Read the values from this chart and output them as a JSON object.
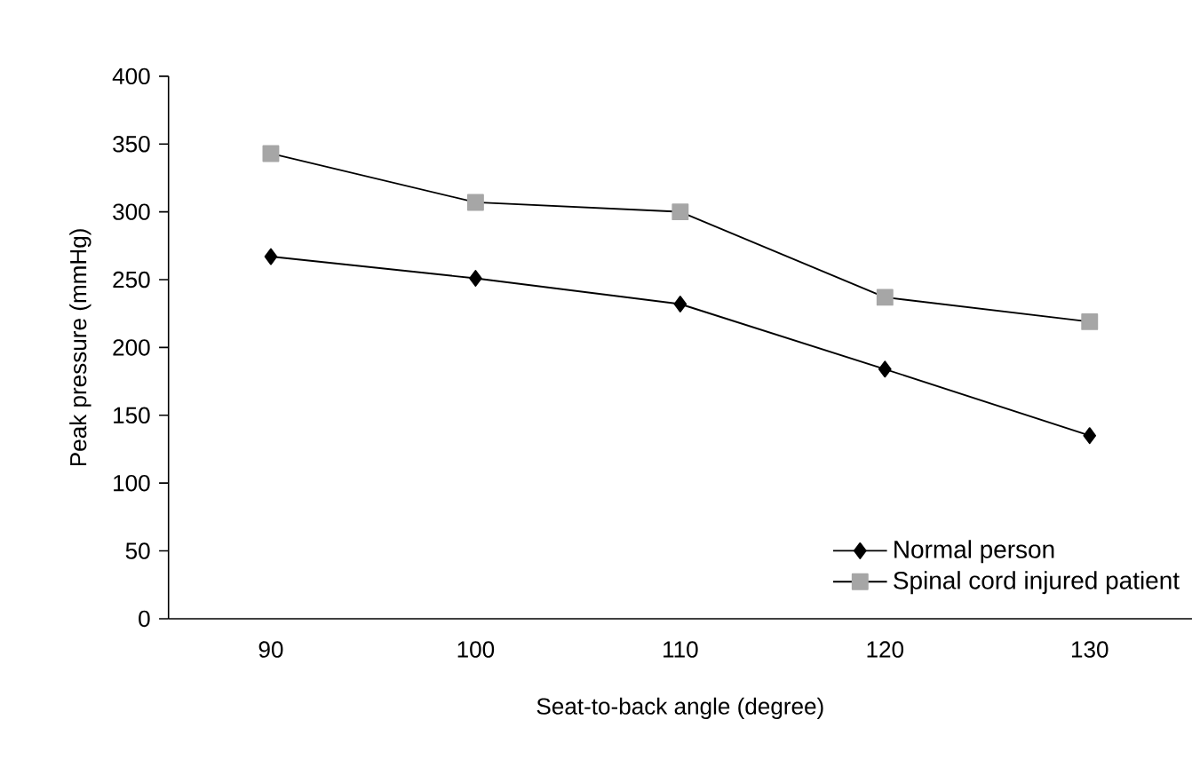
{
  "chart_data": {
    "type": "line",
    "xlabel": "Seat-to-back angle (degree)",
    "ylabel": "Peak pressure (mmHg)",
    "categories": [
      "90",
      "100",
      "110",
      "120",
      "130"
    ],
    "series": [
      {
        "name": "Normal person",
        "color": "#000000",
        "marker": "diamond",
        "values": [
          267,
          251,
          232,
          184,
          135
        ]
      },
      {
        "name": "Spinal cord injured patient",
        "color": "#a6a6a6",
        "marker": "square",
        "values": [
          343,
          307,
          300,
          237,
          219
        ]
      }
    ],
    "ylim": [
      0,
      400
    ],
    "yticks": [
      0,
      50,
      100,
      150,
      200,
      250,
      300,
      350,
      400
    ],
    "grid": false,
    "legend": "bottom right",
    "line_style": "solid"
  }
}
